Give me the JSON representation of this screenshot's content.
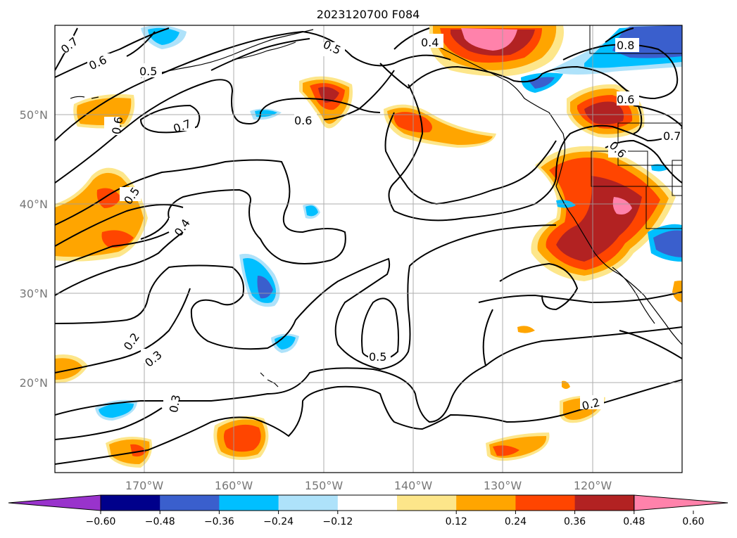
{
  "title": "2023120700 F084",
  "map": {
    "lat_labels": [
      "50°N",
      "40°N",
      "30°N",
      "20°N"
    ],
    "lon_labels": [
      "170°W",
      "160°W",
      "150°W",
      "140°W",
      "130°W",
      "120°W"
    ],
    "contour_labels": [
      "0.7",
      "0.6",
      "0.5",
      "0.5",
      "0.6",
      "0.7",
      "0.6",
      "0.5",
      "0.4",
      "0.4",
      "0.8",
      "0.6",
      "0.7",
      "0.6",
      "0.2",
      "0.3",
      "0.3",
      "0.5",
      "0.2"
    ]
  },
  "colorbar": {
    "tick_labels": [
      "−0.60",
      "−0.48",
      "−0.36",
      "−0.24",
      "−0.12",
      "0.12",
      "0.24",
      "0.36",
      "0.48",
      "0.60"
    ],
    "colors": [
      "#9933cc",
      "#00008b",
      "#3a5fcd",
      "#00bfff",
      "#aee2fa",
      "#ffffff",
      "#fde68a",
      "#ffa500",
      "#ff4500",
      "#b22222",
      "#ff82ab"
    ]
  }
}
